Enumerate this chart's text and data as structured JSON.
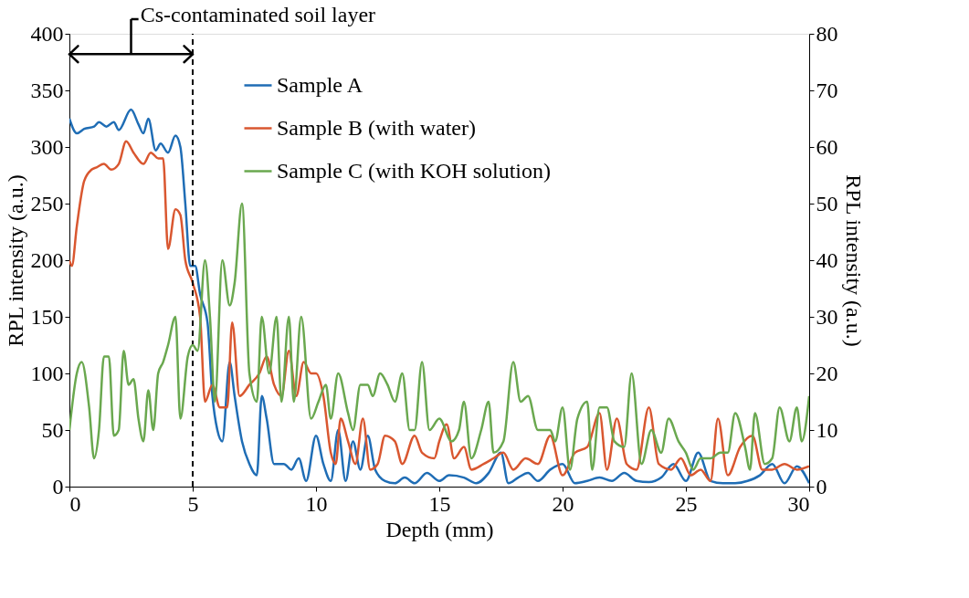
{
  "chart_data": {
    "type": "line",
    "xlabel": "Depth (mm)",
    "ylabel": "RPL intensity (a.u.)",
    "y2label": "RPL intensity (a.u.)",
    "xlim": [
      0,
      30
    ],
    "xticks": [
      0,
      5,
      10,
      15,
      20,
      25,
      30
    ],
    "ylim": [
      0,
      400
    ],
    "yticks": [
      0,
      50,
      100,
      150,
      200,
      250,
      300,
      350,
      400
    ],
    "y2lim": [
      0,
      80
    ],
    "y2ticks": [
      0,
      10,
      20,
      30,
      40,
      50,
      60,
      70,
      80
    ],
    "grid": false,
    "legend": "top",
    "annotations": [
      "Cs-contaminated soil layer"
    ],
    "ref_lines": [
      {
        "axis": "x",
        "value": 5,
        "line_style": "dashed",
        "color": "#000000"
      }
    ],
    "series": [
      {
        "name": "Sample A",
        "color": "#1f6db5",
        "x": [
          0,
          0.3,
          0.6,
          1.0,
          1.2,
          1.5,
          1.8,
          2.0,
          2.5,
          2.8,
          3.0,
          3.2,
          3.5,
          3.7,
          4.0,
          4.3,
          4.5,
          4.7,
          4.9,
          5.1,
          5.3,
          5.6,
          5.8,
          6.0,
          6.2,
          6.5,
          6.7,
          7.0,
          7.3,
          7.6,
          7.8,
          8.0,
          8.3,
          8.7,
          9.0,
          9.3,
          9.6,
          10.0,
          10.3,
          10.6,
          10.9,
          11.2,
          11.5,
          11.8,
          12.1,
          12.4,
          12.8,
          13.2,
          13.6,
          14.0,
          14.5,
          15.0,
          15.4,
          16.0,
          16.5,
          17.0,
          17.5,
          17.8,
          18.2,
          18.6,
          19.0,
          19.5,
          20.0,
          20.5,
          21.0,
          21.5,
          22.0,
          22.5,
          23.0,
          23.5,
          24.0,
          24.5,
          25.0,
          25.5,
          26.0,
          26.5,
          27.0,
          27.5,
          28.0,
          28.5,
          29.0,
          29.5,
          30.0
        ],
        "values": [
          325,
          312,
          316,
          318,
          322,
          318,
          322,
          315,
          333,
          320,
          312,
          325,
          297,
          303,
          295,
          310,
          300,
          250,
          195,
          195,
          170,
          145,
          80,
          50,
          40,
          110,
          80,
          40,
          20,
          10,
          80,
          60,
          20,
          20,
          15,
          25,
          5,
          45,
          20,
          5,
          50,
          5,
          40,
          15,
          45,
          15,
          5,
          3,
          8,
          3,
          12,
          5,
          10,
          8,
          3,
          12,
          30,
          3,
          8,
          12,
          5,
          15,
          20,
          3,
          5,
          8,
          5,
          12,
          5,
          4,
          8,
          20,
          5,
          30,
          5,
          3,
          3,
          5,
          10,
          20,
          3,
          18,
          3
        ]
      },
      {
        "name": "Sample B (with water)",
        "color": "#d95730",
        "x": [
          0,
          0.1,
          0.3,
          0.6,
          0.9,
          1.1,
          1.4,
          1.7,
          2.0,
          2.3,
          2.6,
          3.0,
          3.3,
          3.6,
          3.8,
          4.0,
          4.3,
          4.5,
          4.7,
          5.0,
          5.3,
          5.5,
          5.8,
          6.1,
          6.4,
          6.6,
          6.9,
          7.3,
          7.7,
          8.0,
          8.3,
          8.6,
          8.9,
          9.2,
          9.5,
          9.8,
          10.0,
          10.3,
          10.6,
          10.8,
          11.0,
          11.3,
          11.6,
          11.9,
          12.2,
          12.5,
          12.8,
          13.2,
          13.5,
          14.0,
          14.3,
          14.8,
          15.0,
          15.3,
          15.6,
          16.0,
          16.3,
          16.8,
          17.2,
          17.6,
          18.0,
          18.5,
          19.0,
          19.5,
          20.0,
          20.5,
          21.0,
          21.5,
          21.8,
          22.2,
          22.6,
          23.0,
          23.5,
          23.9,
          24.4,
          24.8,
          25.2,
          25.6,
          26.0,
          26.3,
          26.7,
          27.2,
          27.7,
          28.1,
          28.5,
          29.0,
          29.5,
          30.0
        ],
        "values": [
          200,
          195,
          230,
          270,
          280,
          282,
          285,
          280,
          285,
          305,
          295,
          285,
          295,
          290,
          290,
          210,
          245,
          240,
          200,
          180,
          150,
          75,
          90,
          70,
          70,
          145,
          80,
          90,
          100,
          115,
          90,
          80,
          120,
          80,
          110,
          100,
          100,
          80,
          30,
          20,
          60,
          40,
          20,
          60,
          15,
          20,
          45,
          40,
          20,
          45,
          30,
          25,
          40,
          55,
          25,
          35,
          15,
          20,
          25,
          30,
          15,
          25,
          20,
          45,
          10,
          30,
          35,
          65,
          15,
          60,
          20,
          15,
          70,
          20,
          15,
          25,
          10,
          15,
          5,
          60,
          10,
          35,
          45,
          15,
          15,
          20,
          15,
          18
        ]
      },
      {
        "name": "Sample C (with KOH solution)",
        "color": "#6aa84f",
        "axis": "y2",
        "x": [
          0,
          0.3,
          0.5,
          0.8,
          1.0,
          1.2,
          1.4,
          1.6,
          1.8,
          2.0,
          2.2,
          2.4,
          2.6,
          2.8,
          3.0,
          3.2,
          3.4,
          3.6,
          3.8,
          4.0,
          4.3,
          4.5,
          4.8,
          5.0,
          5.2,
          5.5,
          5.7,
          5.9,
          6.2,
          6.5,
          6.7,
          7.0,
          7.3,
          7.6,
          7.8,
          8.1,
          8.4,
          8.6,
          8.9,
          9.1,
          9.4,
          9.8,
          10.1,
          10.4,
          10.6,
          10.9,
          11.3,
          11.5,
          11.8,
          12.1,
          12.3,
          12.6,
          12.9,
          13.2,
          13.5,
          13.8,
          14.0,
          14.3,
          14.6,
          15.0,
          15.5,
          15.8,
          16.0,
          16.3,
          16.7,
          17.0,
          17.2,
          17.6,
          18.0,
          18.3,
          18.6,
          19.0,
          19.5,
          19.7,
          20.0,
          20.3,
          20.6,
          21.0,
          21.2,
          21.5,
          21.8,
          22.1,
          22.5,
          22.8,
          23.2,
          23.6,
          24.0,
          24.3,
          24.7,
          25.0,
          25.3,
          25.6,
          26.0,
          26.4,
          26.7,
          27.0,
          27.4,
          27.6,
          27.8,
          28.2,
          28.5,
          28.8,
          29.2,
          29.5,
          29.7,
          30.0
        ],
        "values": [
          10,
          20,
          22,
          14,
          5,
          10,
          23,
          23,
          9,
          10,
          24,
          18,
          19,
          12,
          8,
          17,
          10,
          20,
          22,
          25,
          30,
          12,
          23,
          25,
          24,
          40,
          30,
          15,
          40,
          32,
          36,
          50,
          20,
          15,
          30,
          20,
          30,
          15,
          30,
          15,
          30,
          12,
          15,
          18,
          12,
          20,
          13,
          10,
          18,
          18,
          16,
          20,
          18,
          15,
          20,
          10,
          10,
          22,
          10,
          12,
          8,
          10,
          15,
          5,
          10,
          15,
          6,
          8,
          22,
          15,
          16,
          10,
          10,
          8,
          14,
          3,
          12,
          15,
          3,
          14,
          14,
          8,
          7,
          20,
          4,
          10,
          6,
          12,
          8,
          6,
          3,
          5,
          5,
          6,
          6,
          13,
          7,
          3,
          13,
          4,
          5,
          14,
          8,
          14,
          8,
          16
        ]
      }
    ]
  }
}
